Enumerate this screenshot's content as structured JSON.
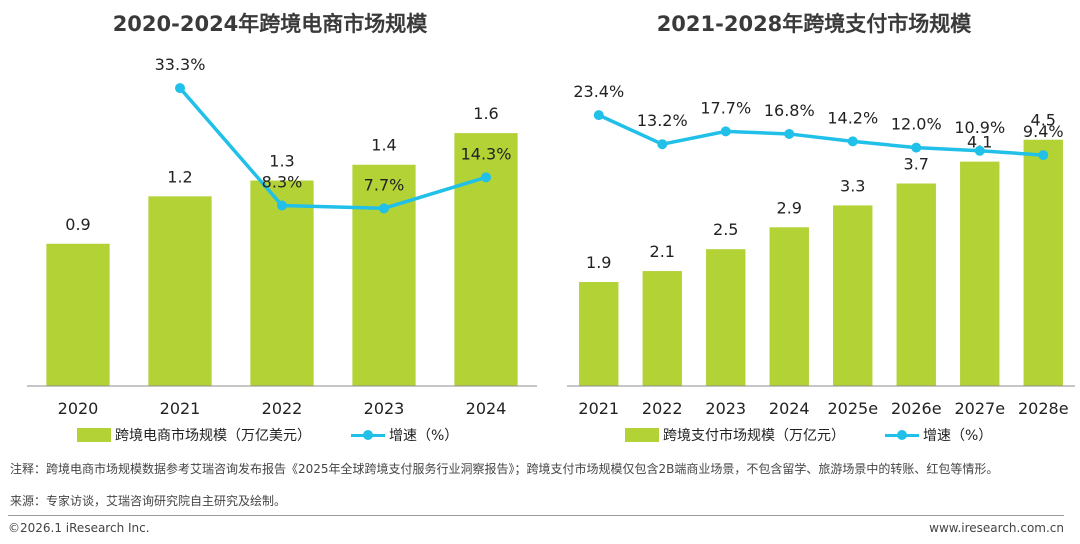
{
  "chart_data": [
    {
      "type": "bar",
      "title": "2020-2024年跨境电商市场规模",
      "categories": [
        "2020",
        "2021",
        "2022",
        "2023",
        "2024"
      ],
      "series": [
        {
          "name": "跨境电商市场规模（万亿美元）",
          "kind": "bar",
          "values": [
            0.9,
            1.2,
            1.3,
            1.4,
            1.6
          ],
          "labels": [
            "0.9",
            "1.2",
            "1.3",
            "1.4",
            "1.6"
          ],
          "color": "#b2d235"
        },
        {
          "name": "增速（%）",
          "kind": "line",
          "values": [
            null,
            33.3,
            8.3,
            7.7,
            14.3
          ],
          "labels": [
            "",
            "33.3%",
            "8.3%",
            "7.7%",
            "14.3%"
          ],
          "color": "#21c0e8"
        }
      ],
      "ylim": [
        0,
        2.05
      ],
      "line_range": [
        5,
        38
      ],
      "legend": "bottom"
    },
    {
      "type": "bar",
      "title": "2021-2028年跨境支付市场规模",
      "categories": [
        "2021",
        "2022",
        "2023",
        "2024",
        "2025e",
        "2026e",
        "2027e",
        "2028e"
      ],
      "series": [
        {
          "name": "跨境支付市场规模（万亿元）",
          "kind": "bar",
          "values": [
            1.9,
            2.1,
            2.5,
            2.9,
            3.3,
            3.7,
            4.1,
            4.5
          ],
          "labels": [
            "1.9",
            "2.1",
            "2.5",
            "2.9",
            "3.3",
            "3.7",
            "4.1",
            "4.5"
          ],
          "color": "#b2d235"
        },
        {
          "name": "增速（%）",
          "kind": "line",
          "values": [
            23.4,
            13.2,
            17.7,
            16.8,
            14.2,
            12.0,
            10.9,
            9.4
          ],
          "labels": [
            "23.4%",
            "13.2%",
            "17.7%",
            "16.8%",
            "14.2%",
            "12.0%",
            "10.9%",
            "9.4%"
          ],
          "color": "#21c0e8"
        }
      ],
      "ylim": [
        0,
        5.5
      ],
      "line_range": [
        -13,
        35
      ],
      "legend": "bottom"
    }
  ],
  "notes": {
    "line1": "注释：跨境电商市场规模数据参考艾瑞咨询发布报告《2025年全球跨境支付服务行业洞察报告》；跨境支付市场规模仅包含2B端商业场景，不包含留学、旅游场景中的转账、红包等情形。",
    "line2": "来源：专家访谈，艾瑞咨询研究院自主研究及绘制。"
  },
  "footer": {
    "copyright": "©2026.1 iResearch Inc.",
    "website": "www.iresearch.com.cn"
  }
}
